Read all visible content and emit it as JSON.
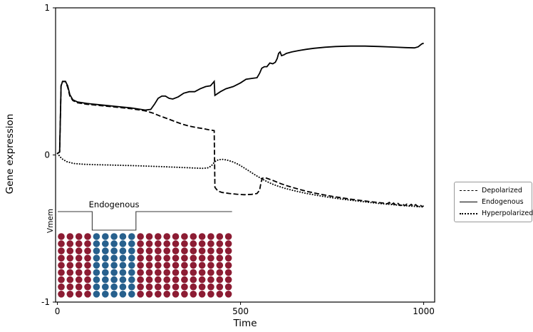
{
  "chart_data": {
    "type": "line",
    "title": "",
    "xlabel": "Time",
    "ylabel": "Gene expression",
    "xlim": [
      -5,
      1030
    ],
    "ylim": [
      -1,
      1
    ],
    "x_ticks": [
      0,
      500,
      1000
    ],
    "y_ticks": [
      -1,
      0,
      1
    ],
    "grid": false,
    "legend_position": "right-outside",
    "line_color": "#000000",
    "series": [
      {
        "name": "Depolarized",
        "style": "dashed",
        "color": "#000000",
        "points": [
          [
            0,
            0.01
          ],
          [
            6,
            0.02
          ],
          [
            10,
            0.47
          ],
          [
            14,
            0.5
          ],
          [
            22,
            0.5
          ],
          [
            28,
            0.46
          ],
          [
            34,
            0.4
          ],
          [
            42,
            0.37
          ],
          [
            55,
            0.355
          ],
          [
            80,
            0.345
          ],
          [
            120,
            0.335
          ],
          [
            160,
            0.325
          ],
          [
            200,
            0.315
          ],
          [
            240,
            0.3
          ],
          [
            260,
            0.285
          ],
          [
            280,
            0.265
          ],
          [
            300,
            0.247
          ],
          [
            320,
            0.228
          ],
          [
            340,
            0.21
          ],
          [
            360,
            0.196
          ],
          [
            380,
            0.186
          ],
          [
            400,
            0.178
          ],
          [
            412,
            0.172
          ],
          [
            422,
            0.168
          ],
          [
            428,
            0.165
          ],
          [
            430,
            -0.22
          ],
          [
            438,
            -0.245
          ],
          [
            450,
            -0.255
          ],
          [
            470,
            -0.262
          ],
          [
            490,
            -0.267
          ],
          [
            510,
            -0.27
          ],
          [
            530,
            -0.268
          ],
          [
            545,
            -0.262
          ],
          [
            552,
            -0.24
          ],
          [
            556,
            -0.185
          ],
          [
            560,
            -0.158
          ],
          [
            568,
            -0.155
          ],
          [
            576,
            -0.162
          ],
          [
            590,
            -0.175
          ],
          [
            610,
            -0.195
          ],
          [
            630,
            -0.212
          ],
          [
            655,
            -0.23
          ],
          [
            680,
            -0.247
          ],
          [
            710,
            -0.263
          ],
          [
            740,
            -0.277
          ],
          [
            770,
            -0.289
          ],
          [
            800,
            -0.3
          ],
          [
            830,
            -0.31
          ],
          [
            860,
            -0.319
          ],
          [
            890,
            -0.327
          ],
          [
            900,
            -0.332
          ],
          [
            906,
            -0.323
          ],
          [
            912,
            -0.338
          ],
          [
            918,
            -0.327
          ],
          [
            924,
            -0.341
          ],
          [
            930,
            -0.33
          ],
          [
            936,
            -0.344
          ],
          [
            942,
            -0.332
          ],
          [
            948,
            -0.345
          ],
          [
            954,
            -0.334
          ],
          [
            960,
            -0.347
          ],
          [
            966,
            -0.336
          ],
          [
            972,
            -0.348
          ],
          [
            978,
            -0.338
          ],
          [
            984,
            -0.35
          ],
          [
            990,
            -0.34
          ],
          [
            996,
            -0.351
          ],
          [
            1000,
            -0.346
          ]
        ]
      },
      {
        "name": "Endogenous",
        "style": "solid",
        "color": "#000000",
        "points": [
          [
            0,
            0.01
          ],
          [
            6,
            0.02
          ],
          [
            10,
            0.47
          ],
          [
            14,
            0.5
          ],
          [
            22,
            0.5
          ],
          [
            28,
            0.47
          ],
          [
            34,
            0.41
          ],
          [
            42,
            0.375
          ],
          [
            55,
            0.36
          ],
          [
            80,
            0.35
          ],
          [
            120,
            0.34
          ],
          [
            160,
            0.33
          ],
          [
            200,
            0.32
          ],
          [
            240,
            0.305
          ],
          [
            255,
            0.31
          ],
          [
            265,
            0.345
          ],
          [
            275,
            0.385
          ],
          [
            285,
            0.4
          ],
          [
            295,
            0.4
          ],
          [
            305,
            0.385
          ],
          [
            315,
            0.38
          ],
          [
            330,
            0.395
          ],
          [
            345,
            0.42
          ],
          [
            360,
            0.43
          ],
          [
            375,
            0.43
          ],
          [
            390,
            0.45
          ],
          [
            405,
            0.465
          ],
          [
            418,
            0.47
          ],
          [
            428,
            0.5
          ],
          [
            430,
            0.405
          ],
          [
            445,
            0.43
          ],
          [
            460,
            0.45
          ],
          [
            480,
            0.465
          ],
          [
            500,
            0.49
          ],
          [
            515,
            0.515
          ],
          [
            530,
            0.52
          ],
          [
            545,
            0.525
          ],
          [
            552,
            0.555
          ],
          [
            558,
            0.59
          ],
          [
            565,
            0.6
          ],
          [
            572,
            0.6
          ],
          [
            580,
            0.625
          ],
          [
            588,
            0.62
          ],
          [
            595,
            0.63
          ],
          [
            600,
            0.655
          ],
          [
            604,
            0.69
          ],
          [
            608,
            0.7
          ],
          [
            612,
            0.675
          ],
          [
            618,
            0.68
          ],
          [
            625,
            0.69
          ],
          [
            640,
            0.7
          ],
          [
            660,
            0.71
          ],
          [
            680,
            0.718
          ],
          [
            700,
            0.725
          ],
          [
            730,
            0.732
          ],
          [
            760,
            0.737
          ],
          [
            800,
            0.74
          ],
          [
            840,
            0.74
          ],
          [
            880,
            0.737
          ],
          [
            920,
            0.733
          ],
          [
            950,
            0.73
          ],
          [
            975,
            0.728
          ],
          [
            985,
            0.735
          ],
          [
            995,
            0.755
          ],
          [
            1000,
            0.76
          ]
        ]
      },
      {
        "name": "Hyperpolarized",
        "style": "dotted",
        "color": "#000000",
        "points": [
          [
            0,
            0.01
          ],
          [
            5,
            -0.005
          ],
          [
            12,
            -0.025
          ],
          [
            25,
            -0.045
          ],
          [
            45,
            -0.058
          ],
          [
            70,
            -0.063
          ],
          [
            100,
            -0.066
          ],
          [
            150,
            -0.069
          ],
          [
            200,
            -0.072
          ],
          [
            250,
            -0.076
          ],
          [
            300,
            -0.081
          ],
          [
            350,
            -0.086
          ],
          [
            395,
            -0.091
          ],
          [
            410,
            -0.088
          ],
          [
            420,
            -0.075
          ],
          [
            430,
            -0.045
          ],
          [
            440,
            -0.032
          ],
          [
            452,
            -0.03
          ],
          [
            465,
            -0.036
          ],
          [
            480,
            -0.048
          ],
          [
            495,
            -0.065
          ],
          [
            510,
            -0.088
          ],
          [
            525,
            -0.112
          ],
          [
            540,
            -0.136
          ],
          [
            555,
            -0.158
          ],
          [
            570,
            -0.178
          ],
          [
            585,
            -0.196
          ],
          [
            600,
            -0.21
          ],
          [
            620,
            -0.226
          ],
          [
            645,
            -0.242
          ],
          [
            675,
            -0.259
          ],
          [
            710,
            -0.275
          ],
          [
            745,
            -0.289
          ],
          [
            780,
            -0.301
          ],
          [
            815,
            -0.312
          ],
          [
            850,
            -0.322
          ],
          [
            885,
            -0.331
          ],
          [
            920,
            -0.339
          ],
          [
            955,
            -0.346
          ],
          [
            1000,
            -0.354
          ]
        ]
      }
    ],
    "legend": [
      {
        "label": "Depolarized",
        "style": "dashed"
      },
      {
        "label": "Endogenous",
        "style": "solid"
      },
      {
        "label": "Hyperpolarized",
        "style": "dotted"
      }
    ],
    "inset": {
      "vmem_label": "Vmem",
      "condition_label": "Endogenous",
      "pulse_shape": "flanks-high-middle-low",
      "cell_grid": {
        "cols": 20,
        "rows": 9,
        "blue_col_start": 4,
        "blue_col_end": 8,
        "red_color": "#8c1c33",
        "blue_color": "#27608d"
      }
    }
  }
}
